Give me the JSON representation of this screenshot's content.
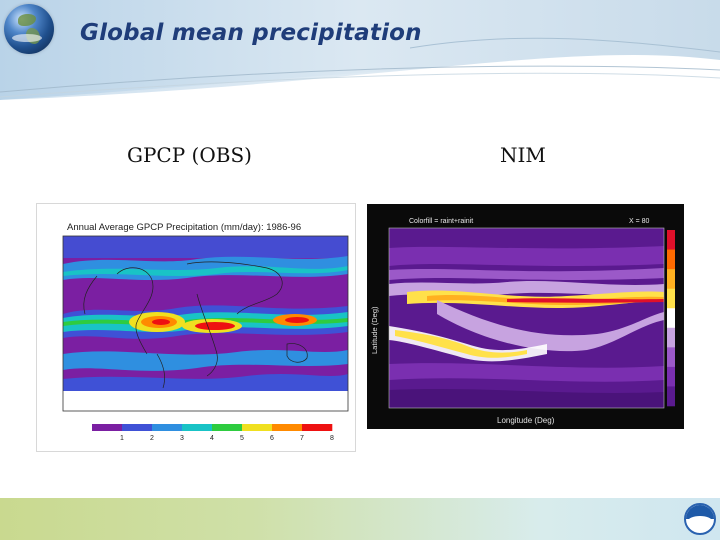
{
  "slide": {
    "title": "Global mean precipitation",
    "labels": {
      "left": "GPCP (OBS)",
      "right": "NIM"
    }
  },
  "gpcp_map": {
    "title": "Annual Average GPCP Precipitation (mm/day): 1986-96",
    "colorbar_ticks": [
      "1",
      "2",
      "3",
      "4",
      "5",
      "6",
      "7",
      "8"
    ],
    "colors": [
      "#7b1fa2",
      "#3f51d6",
      "#2f8fe0",
      "#19c3c6",
      "#2ecc40",
      "#f0e020",
      "#ff8a00",
      "#ee1111"
    ]
  },
  "nim_plot": {
    "header_left": "Colorfill = raint+rainit",
    "header_right": "X = 80",
    "ylabel": "Latitude (Deg)",
    "xlabel": "Longitude (Deg)",
    "colors": [
      "#5a1a8f",
      "#7a2fb0",
      "#9b59c8",
      "#c7a3e0",
      "#ffffff",
      "#ffe14a",
      "#ffb020",
      "#ff6a00",
      "#e0102a"
    ]
  },
  "footer": {
    "logo": "noaa-logo"
  }
}
